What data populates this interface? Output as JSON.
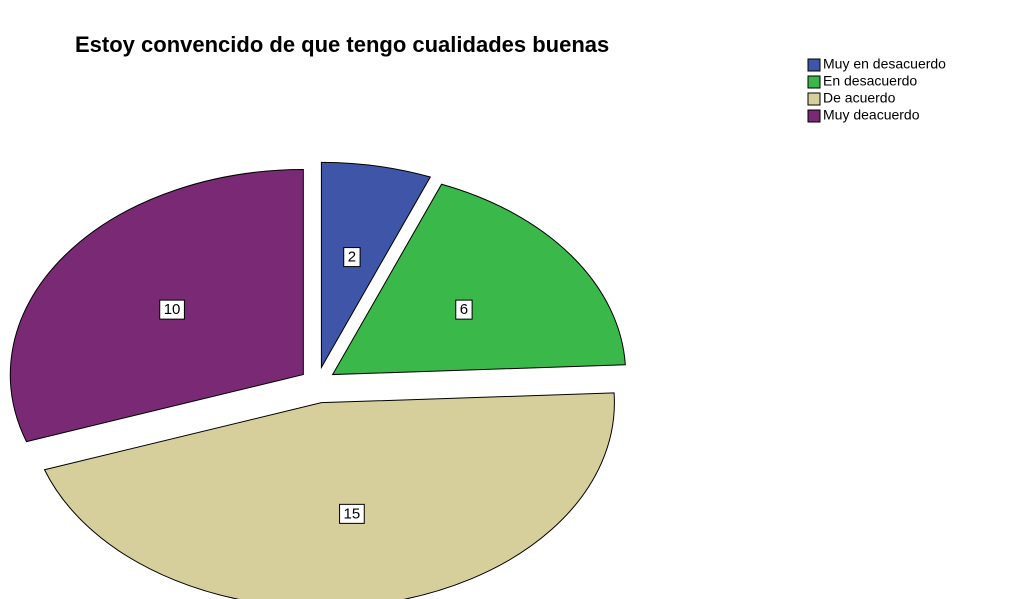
{
  "chart_data": {
    "type": "pie",
    "title": "Estoy convencido de que tengo cualidades buenas",
    "categories": [
      "Muy en desacuerdo",
      "En desacuerdo",
      "De acuerdo",
      "Muy deacuerdo"
    ],
    "values": [
      2,
      6,
      15,
      10
    ],
    "colors": [
      "#3f55a8",
      "#3bb84a",
      "#d6cf9b",
      "#7a2a74"
    ],
    "legend": "top-right"
  }
}
